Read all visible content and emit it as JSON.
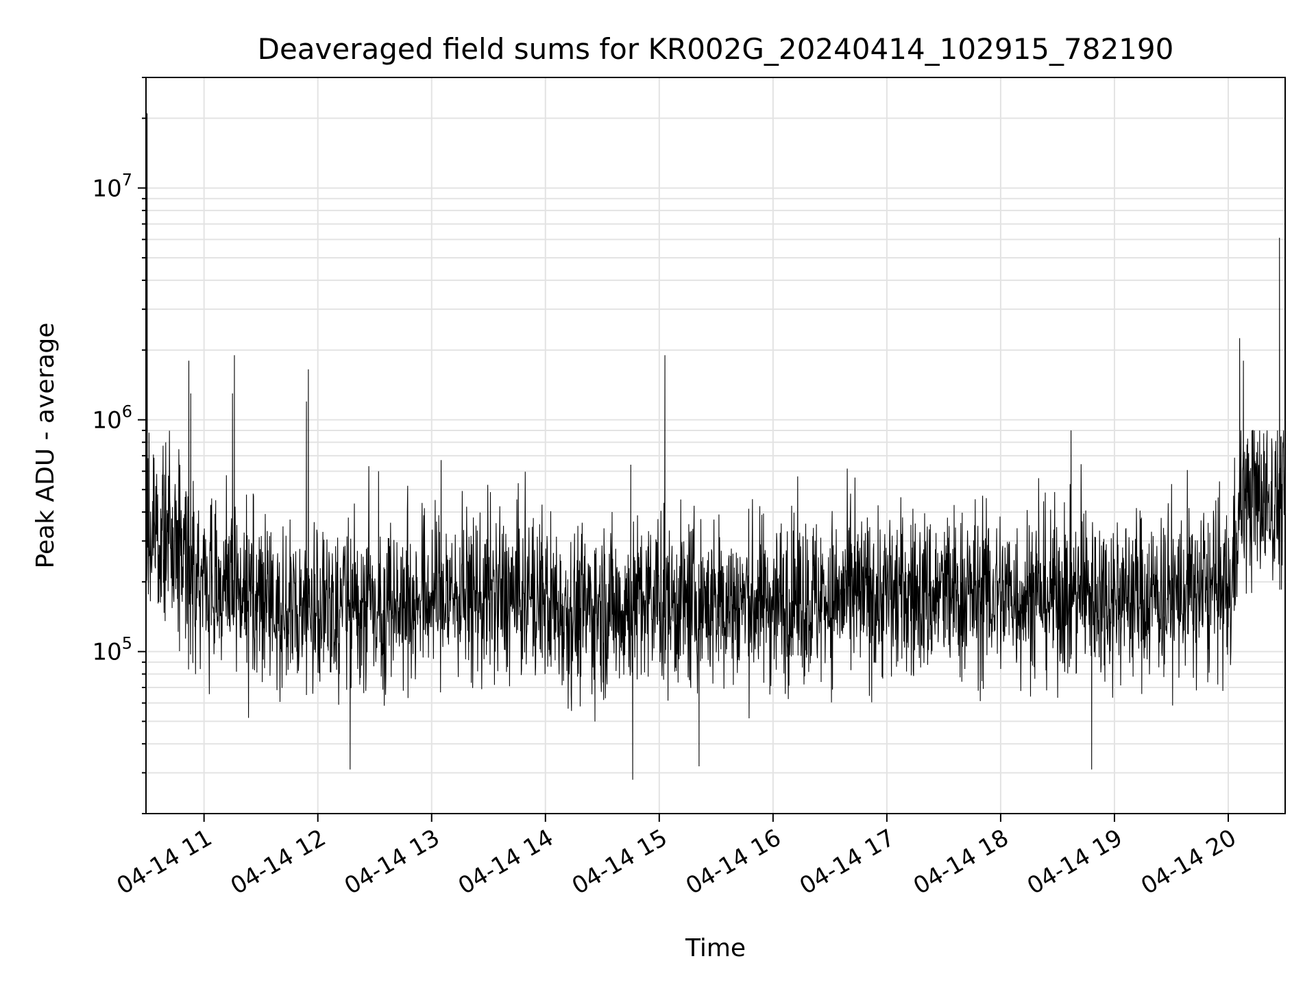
{
  "chart_data": {
    "type": "line",
    "title": "Deaveraged field sums for KR002G_20240414_102915_782190",
    "xlabel": "Time",
    "ylabel": "Peak ADU - average",
    "yscale": "log",
    "ylim": [
      20000,
      30000000
    ],
    "xlim_hours": [
      10.49,
      20.5
    ],
    "grid": true,
    "x_ticks": [
      "04-14 11",
      "04-14 12",
      "04-14 13",
      "04-14 14",
      "04-14 15",
      "04-14 16",
      "04-14 17",
      "04-14 18",
      "04-14 19",
      "04-14 20"
    ],
    "y_ticks": [
      {
        "base": "10",
        "exp": "5",
        "value": 100000
      },
      {
        "base": "10",
        "exp": "6",
        "value": 1000000
      },
      {
        "base": "10",
        "exp": "7",
        "value": 10000000
      }
    ],
    "series": [
      {
        "color": "#000000",
        "baseline": [
          [
            10.49,
            300000
          ],
          [
            10.85,
            300000
          ],
          [
            10.9,
            200000
          ],
          [
            11.5,
            160000
          ],
          [
            12.2,
            150000
          ],
          [
            12.6,
            160000
          ],
          [
            13.0,
            175000
          ],
          [
            14.0,
            170000
          ],
          [
            14.2,
            150000
          ],
          [
            15.0,
            160000
          ],
          [
            16.0,
            165000
          ],
          [
            17.0,
            175000
          ],
          [
            18.0,
            175000
          ],
          [
            19.0,
            175000
          ],
          [
            20.02,
            175000
          ],
          [
            20.1,
            450000
          ],
          [
            20.5,
            450000
          ]
        ],
        "spikes": [
          {
            "x": "04-14 10:30",
            "y": 21000000
          },
          {
            "x": "04-14 10:31",
            "y": 880000
          },
          {
            "x": "04-14 10:52",
            "y": 1800000
          },
          {
            "x": "04-14 10:53",
            "y": 1300000
          },
          {
            "x": "04-14 11:16",
            "y": 1900000
          },
          {
            "x": "04-14 11:15",
            "y": 1300000
          },
          {
            "x": "04-14 11:55",
            "y": 1650000
          },
          {
            "x": "04-14 11:54",
            "y": 1200000
          },
          {
            "x": "04-14 12:32",
            "y": 600000
          },
          {
            "x": "04-14 13:05",
            "y": 670000
          },
          {
            "x": "04-14 14:45",
            "y": 640000
          },
          {
            "x": "04-14 15:03",
            "y": 1900000
          },
          {
            "x": "04-14 18:20",
            "y": 560000
          },
          {
            "x": "04-14 20:06",
            "y": 2250000
          },
          {
            "x": "04-14 20:08",
            "y": 1800000
          },
          {
            "x": "04-14 20:27",
            "y": 6100000
          }
        ],
        "dips": [
          {
            "x": "04-14 12:17",
            "y": 31000
          },
          {
            "x": "04-14 14:46",
            "y": 28000
          },
          {
            "x": "04-14 15:21",
            "y": 32000
          },
          {
            "x": "04-14 18:48",
            "y": 31000
          }
        ]
      }
    ]
  }
}
